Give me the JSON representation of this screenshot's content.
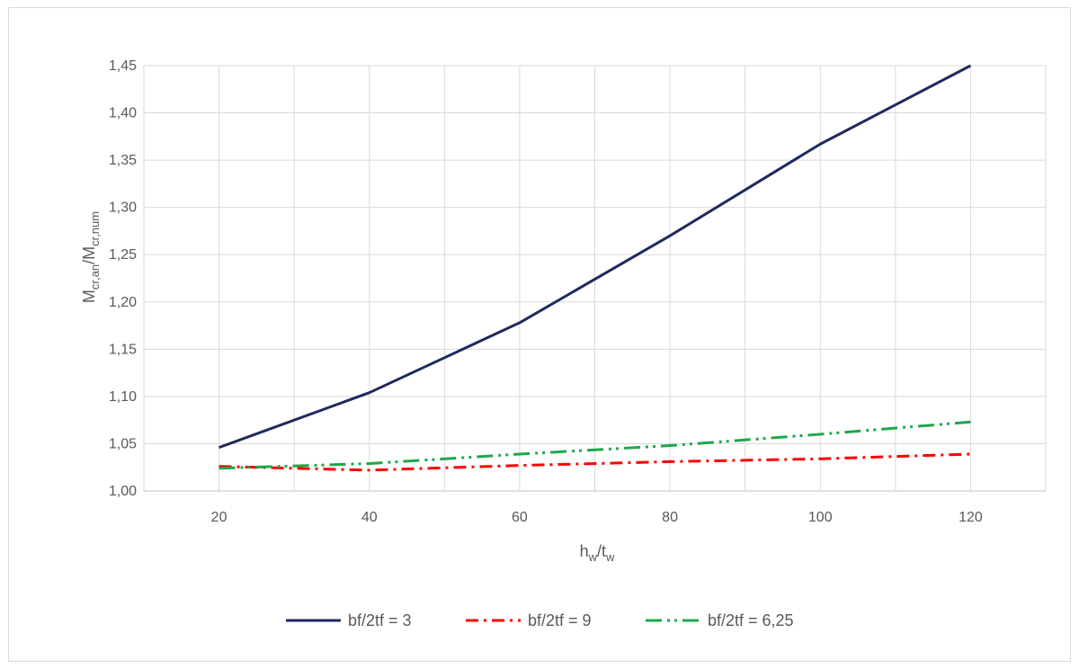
{
  "chart_data": {
    "type": "line",
    "title": "",
    "xlabel": {
      "main": "h",
      "sub1": "w",
      "sep": "/t",
      "sub2": "w"
    },
    "ylabel": {
      "main1": "M",
      "sub1": "cr,an",
      "sep": "/M",
      "sub2": "cr,num"
    },
    "x": [
      20,
      40,
      60,
      80,
      100,
      120
    ],
    "x_ticks": [
      "20",
      "40",
      "60",
      "80",
      "100",
      "120"
    ],
    "xlim": [
      10,
      130
    ],
    "ylim": [
      1.0,
      1.45
    ],
    "y_ticks": [
      "1,00",
      "1,05",
      "1,10",
      "1,15",
      "1,20",
      "1,25",
      "1,30",
      "1,35",
      "1,40",
      "1,45"
    ],
    "grid": true,
    "legend_position": "bottom",
    "series": [
      {
        "name": "bf/2tf = 3",
        "color": "#1f2a5c",
        "dash": "solid",
        "values": [
          1.046,
          1.104,
          1.178,
          1.27,
          1.367,
          1.45
        ]
      },
      {
        "name": "bf/2tf = 9",
        "color": "#ff0000",
        "dash": "dash-dot",
        "values": [
          1.026,
          1.022,
          1.027,
          1.031,
          1.034,
          1.039
        ]
      },
      {
        "name": "bf/2tf = 6,25",
        "color": "#1ea84a",
        "dash": "long-dash-dot-dot",
        "values": [
          1.024,
          1.029,
          1.039,
          1.048,
          1.06,
          1.073
        ]
      }
    ]
  }
}
